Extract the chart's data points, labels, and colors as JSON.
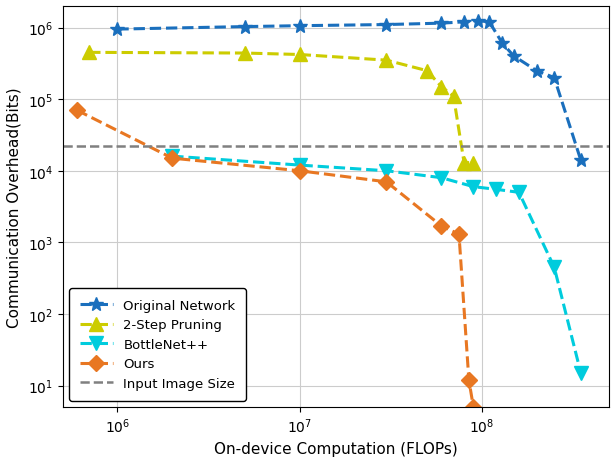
{
  "title": "",
  "xlabel": "On-device Computation (FLOPs)",
  "ylabel": "Communication Overhead(Bits)",
  "xlim": [
    500000.0,
    500000000.0
  ],
  "ylim": [
    5,
    2000000.0
  ],
  "input_image_size": 22000.0,
  "series": {
    "original": {
      "label": "Original Network",
      "color": "#1a6fbd",
      "marker": "*",
      "markersize": 10,
      "x": [
        1000000.0,
        5000000.0,
        10000000.0,
        30000000.0,
        60000000.0,
        80000000.0,
        95000000.0,
        110000000.0,
        130000000.0,
        150000000.0,
        200000000.0,
        250000000.0,
        350000000.0
      ],
      "y": [
        950000.0,
        1030000.0,
        1060000.0,
        1100000.0,
        1150000.0,
        1200000.0,
        1250000.0,
        1200000.0,
        600000.0,
        400000.0,
        250000.0,
        200000.0,
        14000.0
      ]
    },
    "pruning": {
      "label": "2-Step Pruning",
      "color": "#cccc00",
      "marker": "^",
      "markersize": 10,
      "x": [
        700000.0,
        5000000.0,
        10000000.0,
        30000000.0,
        50000000.0,
        60000000.0,
        70000000.0,
        80000000.0,
        90000000.0
      ],
      "y": [
        450000.0,
        440000.0,
        420000.0,
        350000.0,
        250000.0,
        150000.0,
        110000.0,
        13000.0,
        13000.0
      ]
    },
    "bottlenet": {
      "label": "BottleNet++",
      "color": "#00ccdd",
      "marker": "v",
      "markersize": 10,
      "x": [
        2000000.0,
        10000000.0,
        30000000.0,
        60000000.0,
        90000000.0,
        120000000.0,
        160000000.0,
        250000000.0,
        350000000.0
      ],
      "y": [
        16000.0,
        12000.0,
        10000.0,
        8000.0,
        6000.0,
        5500.0,
        5000.0,
        450.0,
        15
      ]
    },
    "ours": {
      "label": "Ours",
      "color": "#e87722",
      "marker": "D",
      "markersize": 8,
      "x": [
        600000.0,
        2000000.0,
        10000000.0,
        30000000.0,
        60000000.0,
        75000000.0,
        85000000.0,
        90000000.0
      ],
      "y": [
        70000.0,
        15000.0,
        10000.0,
        7000.0,
        1700.0,
        1300.0,
        12,
        5
      ]
    }
  },
  "background_color": "#ffffff",
  "grid_color": "#cccccc"
}
